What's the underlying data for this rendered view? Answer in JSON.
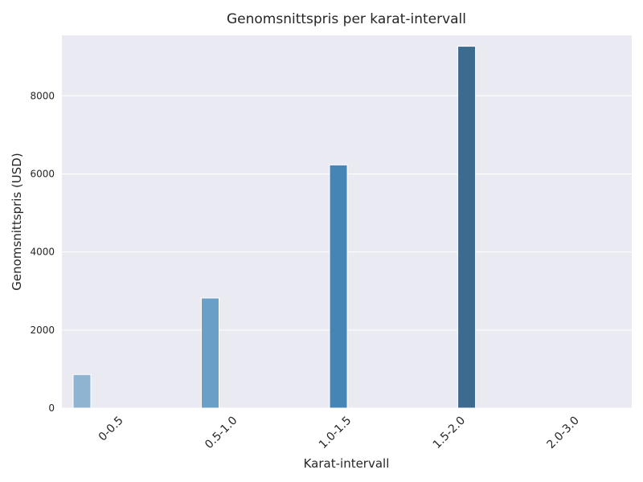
{
  "chart_data": {
    "type": "bar",
    "title": "Genomsnittspris per karat-intervall",
    "xlabel": "Karat-intervall",
    "ylabel": "Genomsnittspris (USD)",
    "categories": [
      "0-0.5",
      "0.5-1.0",
      "1.0-1.5",
      "1.5-2.0",
      "2.0-3.0"
    ],
    "values": [
      860,
      2820,
      6230,
      9270,
      0
    ],
    "colors": [
      "#8fb4d1",
      "#6a9fc7",
      "#4585b5",
      "#3d6b8f",
      "#2f4f6a"
    ],
    "background": "#eaeaf2",
    "grid": true,
    "ylim": [
      0,
      9550
    ],
    "yticks": [
      0,
      2000,
      4000,
      6000,
      8000
    ],
    "ytick_labels": [
      "0",
      "2000",
      "4000",
      "6000",
      "8000"
    ]
  }
}
